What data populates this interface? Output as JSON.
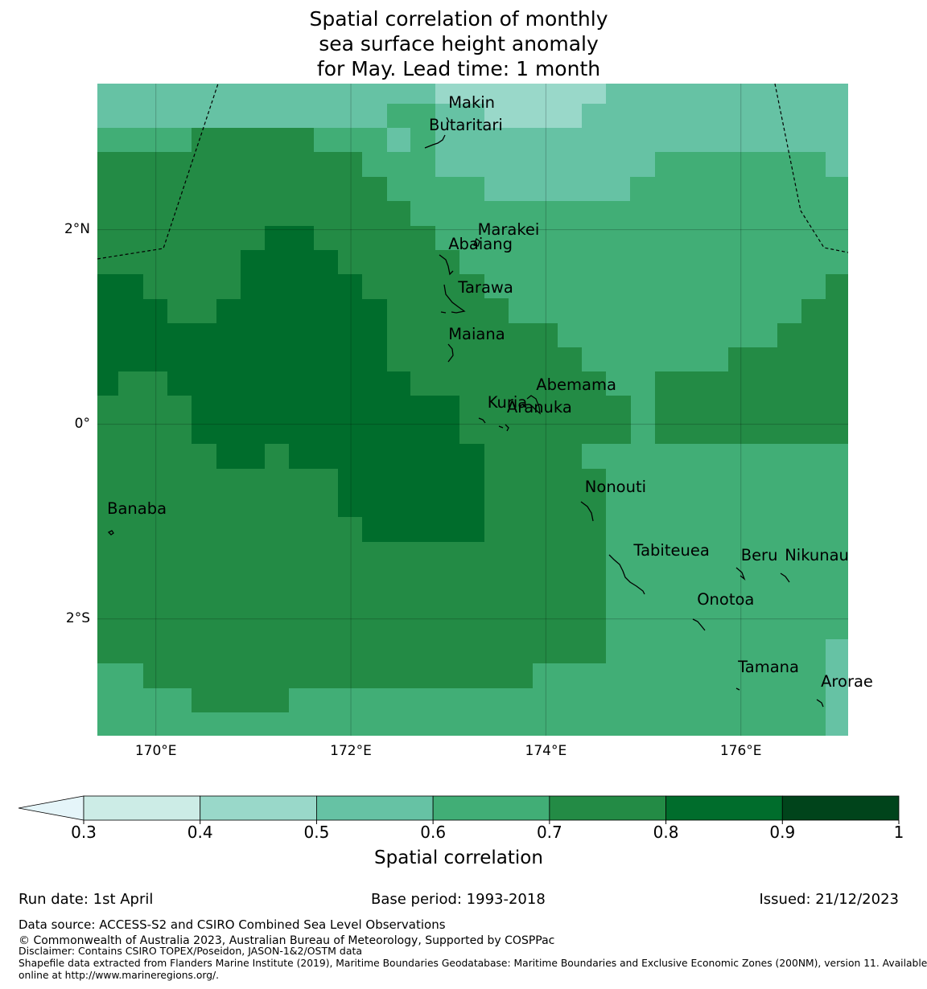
{
  "title": {
    "line1": "Spatial correlation of monthly",
    "line2": "sea surface height anomaly",
    "line3": "for May. Lead time: 1 month"
  },
  "map": {
    "lon_range": [
      169.4,
      177.1
    ],
    "lat_range": [
      -3.2,
      3.5
    ],
    "lon_ticks": [
      {
        "value": 170,
        "label": "170°E"
      },
      {
        "value": 172,
        "label": "172°E"
      },
      {
        "value": 174,
        "label": "174°E"
      },
      {
        "value": 176,
        "label": "176°E"
      }
    ],
    "lat_ticks": [
      {
        "value": 2,
        "label": "2°N"
      },
      {
        "value": 0,
        "label": "0°"
      },
      {
        "value": -2,
        "label": "2°S"
      }
    ],
    "islands": [
      {
        "name": "Makin",
        "lon": 173.0,
        "lat": 3.3
      },
      {
        "name": "Butaritari",
        "lon": 172.8,
        "lat": 3.07
      },
      {
        "name": "Marakei",
        "lon": 173.3,
        "lat": 2.0
      },
      {
        "name": "Abaiang",
        "lon": 173.0,
        "lat": 1.85
      },
      {
        "name": "Tarawa",
        "lon": 173.1,
        "lat": 1.4
      },
      {
        "name": "Maiana",
        "lon": 173.0,
        "lat": 0.92
      },
      {
        "name": "Abemama",
        "lon": 173.9,
        "lat": 0.4
      },
      {
        "name": "Kuria",
        "lon": 173.4,
        "lat": 0.22
      },
      {
        "name": "Aranuka",
        "lon": 173.6,
        "lat": 0.17
      },
      {
        "name": "Nonouti",
        "lon": 174.4,
        "lat": -0.65
      },
      {
        "name": "Banaba",
        "lon": 169.5,
        "lat": -0.87
      },
      {
        "name": "Beru",
        "lon": 176.0,
        "lat": -1.35
      },
      {
        "name": "Nikunau",
        "lon": 176.45,
        "lat": -1.35
      },
      {
        "name": "Tabiteuea",
        "lon": 174.9,
        "lat": -1.3
      },
      {
        "name": "Onotoa",
        "lon": 175.55,
        "lat": -1.8
      },
      {
        "name": "Tamana",
        "lon": 175.97,
        "lat": -2.5
      },
      {
        "name": "Arorae",
        "lon": 176.82,
        "lat": -2.65
      }
    ]
  },
  "colorbar": {
    "ticks": [
      "0.3",
      "0.4",
      "0.5",
      "0.6",
      "0.7",
      "0.8",
      "0.9",
      "1"
    ],
    "colors": [
      "#e5f5f9",
      "#ccece6",
      "#99d8c9",
      "#66c2a4",
      "#41ae76",
      "#238b45",
      "#006d2c",
      "#00441b"
    ],
    "label": "Spatial correlation"
  },
  "footer": {
    "run_date": "Run date: 1st April",
    "base_period": "Base period: 1993-2018",
    "issued": "Issued: 21/12/2023",
    "data_source": "Data source: ACCESS-S2 and CSIRO Combined Sea Level Observations",
    "copyright": "© Commonwealth of Australia 2023, Australian Bureau of Meteorology, Supported by COSPPac",
    "disclaimer": "Disclaimer: Contains CSIRO TOPEX/Poseidon, JASON-1&2/OSTM data",
    "shapefile1": "Shapefile data extracted from Flanders Marine Institute (2019), Maritime Boundaries Geodatabase: Maritime Boundaries and Exclusive Economic Zones (200NM), version 11. Available",
    "shapefile2": "online at http://www.marineregions.org/."
  }
}
